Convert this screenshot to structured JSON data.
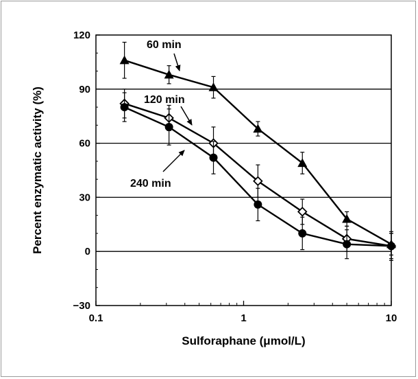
{
  "chart_data": {
    "type": "line",
    "xlabel": "Sulforaphane (μmol/L)",
    "ylabel": "Percent enzymatic activity (%)",
    "xscale": "log",
    "xlim": [
      0.1,
      10
    ],
    "ylim": [
      -30,
      120
    ],
    "x_ticks": [
      0.1,
      1,
      10
    ],
    "x_tick_labels": [
      "0.1",
      "1",
      "10"
    ],
    "y_ticks": [
      -30,
      0,
      30,
      60,
      90,
      120
    ],
    "y_tick_labels": [
      "−30",
      "0",
      "30",
      "60",
      "90",
      "120"
    ],
    "grid": "horizontal",
    "series": [
      {
        "name": "60 min",
        "marker": "triangle",
        "x": [
          0.156,
          0.3125,
          0.625,
          1.25,
          2.5,
          5,
          10
        ],
        "y": [
          106,
          98,
          91,
          68,
          49,
          18,
          4
        ],
        "err": [
          10,
          5,
          6,
          4,
          6,
          4,
          6
        ]
      },
      {
        "name": "120 min",
        "marker": "diamond",
        "x": [
          0.156,
          0.3125,
          0.625,
          1.25,
          2.5,
          5,
          10
        ],
        "y": [
          82,
          74,
          60,
          39,
          22,
          7,
          3
        ],
        "err": [
          8,
          7,
          9,
          9,
          7,
          7,
          7
        ]
      },
      {
        "name": "240 min",
        "marker": "circle",
        "x": [
          0.156,
          0.3125,
          0.625,
          1.25,
          2.5,
          5,
          10
        ],
        "y": [
          80,
          69,
          52,
          26,
          10,
          4,
          3
        ],
        "err": [
          8,
          10,
          9,
          9,
          9,
          8,
          8
        ]
      }
    ],
    "annotations": [
      {
        "text": "60 min",
        "series": "60 min"
      },
      {
        "text": "120 min",
        "series": "120 min"
      },
      {
        "text": "240 min",
        "series": "240 min"
      }
    ]
  }
}
